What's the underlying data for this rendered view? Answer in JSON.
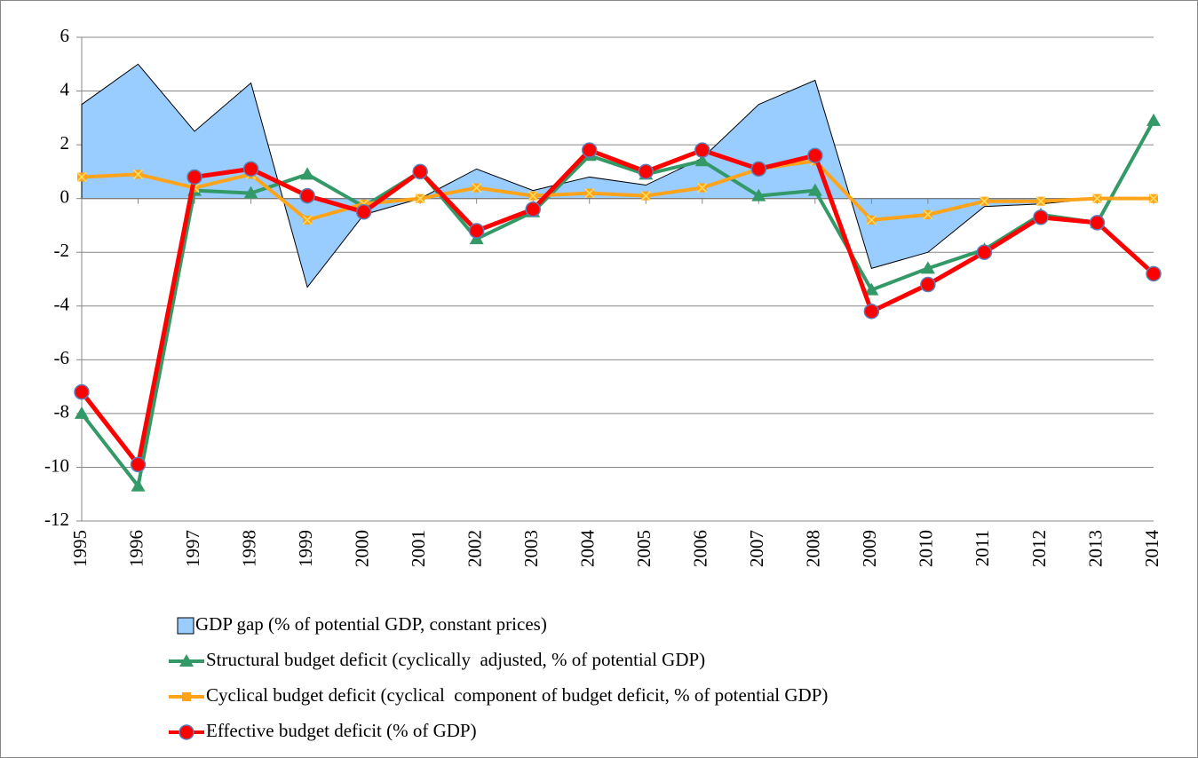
{
  "chart_data": {
    "type": "line",
    "categories": [
      "1995",
      "1996",
      "1997",
      "1998",
      "1999",
      "2000",
      "2001",
      "2002",
      "2003",
      "2004",
      "2005",
      "2006",
      "2007",
      "2008",
      "2009",
      "2010",
      "2011",
      "2012",
      "2013",
      "2014"
    ],
    "ylim": [
      -12,
      6
    ],
    "yticks": [
      -12,
      -10,
      -8,
      -6,
      -4,
      -2,
      0,
      2,
      4,
      6
    ],
    "grid": true,
    "series": [
      {
        "name": "GDP gap (% of potential GDP, constant prices)",
        "type": "area",
        "color": "#99ccff",
        "values": [
          3.5,
          5.0,
          2.5,
          4.3,
          -3.3,
          -0.6,
          0.0,
          1.1,
          0.3,
          0.8,
          0.5,
          1.5,
          3.5,
          4.4,
          -2.6,
          -2.0,
          -0.3,
          -0.2,
          0.0,
          0.0
        ]
      },
      {
        "name": "Structural budget deficit (cyclically  adjusted, % of potential GDP)",
        "type": "line",
        "marker": "triangle",
        "color": "#339966",
        "values": [
          -8.0,
          -10.7,
          0.3,
          0.2,
          0.9,
          -0.3,
          1.0,
          -1.5,
          -0.5,
          1.6,
          0.9,
          1.4,
          0.1,
          0.3,
          -3.4,
          -2.6,
          -1.9,
          -0.6,
          -0.9,
          2.9
        ]
      },
      {
        "name": "Cyclical budget deficit (cyclical  component of budget deficit, % of potential GDP)",
        "type": "line",
        "marker": "square",
        "color": "#ffa31a",
        "values": [
          0.8,
          0.9,
          0.4,
          0.9,
          -0.8,
          -0.2,
          0.0,
          0.4,
          0.1,
          0.2,
          0.1,
          0.4,
          1.1,
          1.4,
          -0.8,
          -0.6,
          -0.1,
          -0.1,
          0.0,
          0.0
        ]
      },
      {
        "name": "Effective budget deficit (% of GDP)",
        "type": "line",
        "marker": "circle",
        "color": "#ff0000",
        "values": [
          -7.2,
          -9.9,
          0.8,
          1.1,
          0.1,
          -0.5,
          1.0,
          -1.2,
          -0.4,
          1.8,
          1.0,
          1.8,
          1.1,
          1.6,
          -4.2,
          -3.2,
          -2.0,
          -0.7,
          -0.9,
          -2.8
        ]
      }
    ]
  }
}
